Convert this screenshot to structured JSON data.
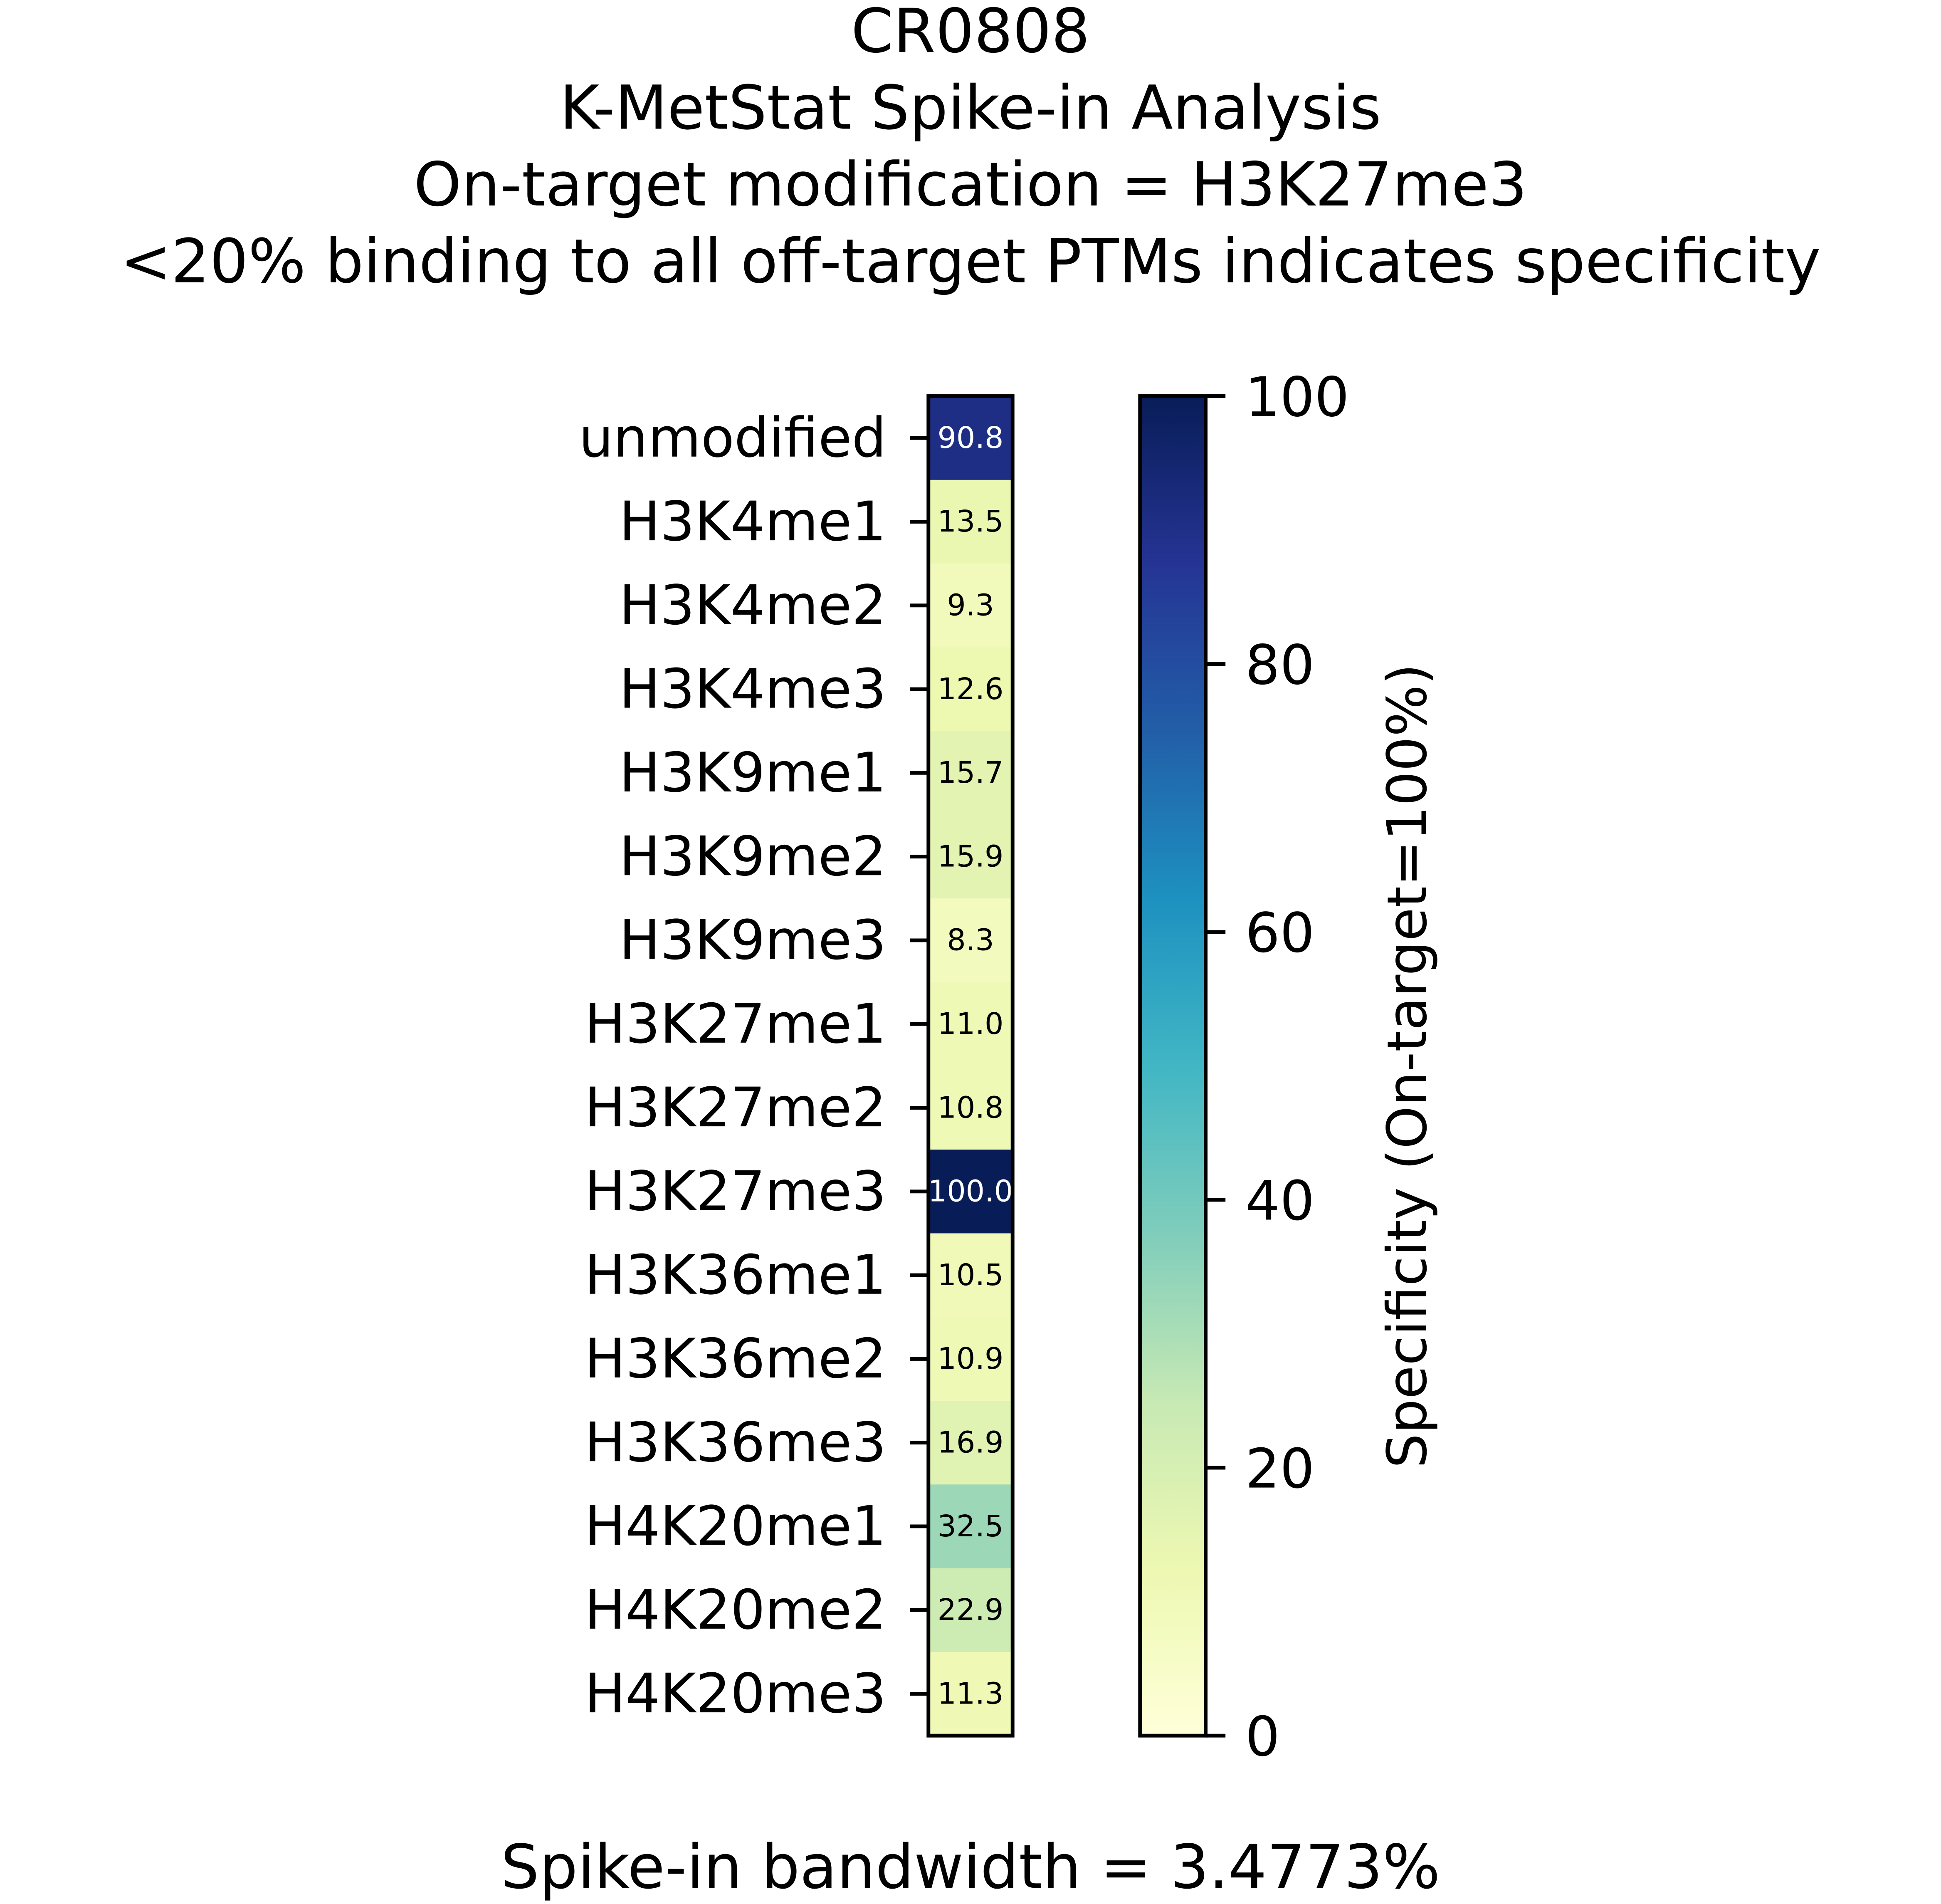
{
  "chart_data": {
    "type": "heatmap",
    "title_lines": [
      "CR0808",
      "K-MetStat Spike-in Analysis",
      "On-target modification = H3K27me3",
      "<20% binding to all off-target PTMs indicates specificity"
    ],
    "categories": [
      "unmodified",
      "H3K4me1",
      "H3K4me2",
      "H3K4me3",
      "H3K9me1",
      "H3K9me2",
      "H3K9me3",
      "H3K27me1",
      "H3K27me2",
      "H3K27me3",
      "H3K36me1",
      "H3K36me2",
      "H3K36me3",
      "H4K20me1",
      "H4K20me2",
      "H4K20me3"
    ],
    "values": [
      90.8,
      13.5,
      9.3,
      12.6,
      15.7,
      15.9,
      8.3,
      11.0,
      10.8,
      100.0,
      10.5,
      10.9,
      16.9,
      32.5,
      22.9,
      11.3
    ],
    "value_labels": [
      "90.8",
      "13.5",
      "9.3",
      "12.6",
      "15.7",
      "15.9",
      "8.3",
      "11.0",
      "10.8",
      "100.0",
      "10.5",
      "10.9",
      "16.9",
      "32.5",
      "22.9",
      "11.3"
    ],
    "colormap": "YlGnBu",
    "colormap_stops": [
      "#ffffd9",
      "#edf8b1",
      "#c7e9b4",
      "#7fcdbb",
      "#41b6c4",
      "#1d91c0",
      "#225ea8",
      "#253494",
      "#081d58"
    ],
    "colorbar": {
      "range": [
        0,
        100
      ],
      "ticks": [
        "0",
        "20",
        "40",
        "60",
        "80",
        "100"
      ],
      "label": "Specificity (On-target=100%)"
    },
    "footer": "Spike-in bandwidth = 3.4773%"
  }
}
